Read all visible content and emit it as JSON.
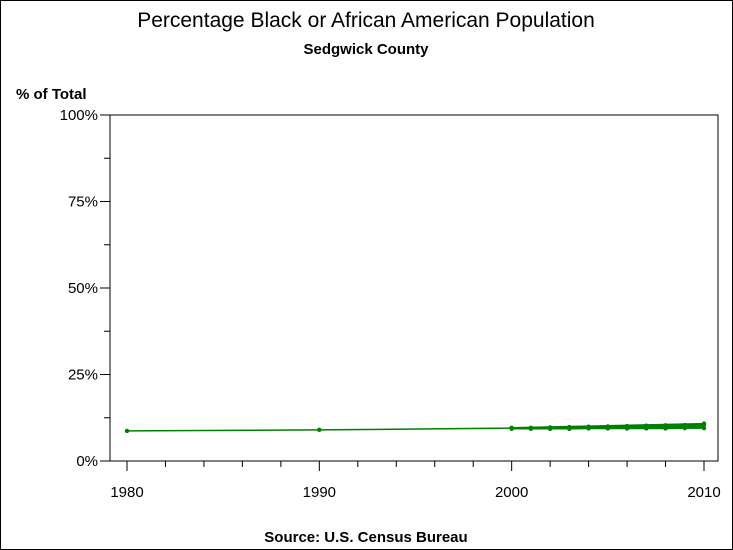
{
  "chart_data": {
    "type": "line",
    "title": "Percentage Black or African American Population",
    "subtitle": "Sedgwick County",
    "ylabel": "% of Total",
    "xlabel": "",
    "source": "Source: U.S. Census Bureau",
    "xlim": [
      1980,
      2010
    ],
    "ylim": [
      0,
      100
    ],
    "x_ticks": [
      1980,
      1990,
      2000,
      2010
    ],
    "x_tick_labels": [
      "1980",
      "1990",
      "2000",
      "2010"
    ],
    "y_ticks": [
      0,
      25,
      50,
      75,
      100
    ],
    "y_tick_labels": [
      "0%",
      "25%",
      "50%",
      "75%",
      "100%"
    ],
    "grid": false,
    "line_color": "#008000",
    "series": [
      {
        "x": [
          1980,
          1990,
          2000,
          2001,
          2002,
          2003,
          2004,
          2005,
          2006,
          2007,
          2008,
          2009,
          2010
        ],
        "values": [
          8.7,
          9.0,
          9.5,
          9.6,
          9.7,
          9.8,
          9.9,
          10.0,
          10.1,
          10.2,
          10.3,
          10.4,
          10.5
        ]
      },
      {
        "x": [
          2000,
          2001,
          2002,
          2003,
          2004,
          2005,
          2006,
          2007,
          2008,
          2009,
          2010
        ],
        "values": [
          9.3,
          9.3,
          9.3,
          9.3,
          9.4,
          9.4,
          9.4,
          9.4,
          9.4,
          9.5,
          9.5
        ]
      },
      {
        "x": [
          2000,
          2010
        ],
        "values": [
          9.6,
          10.8
        ]
      }
    ]
  }
}
